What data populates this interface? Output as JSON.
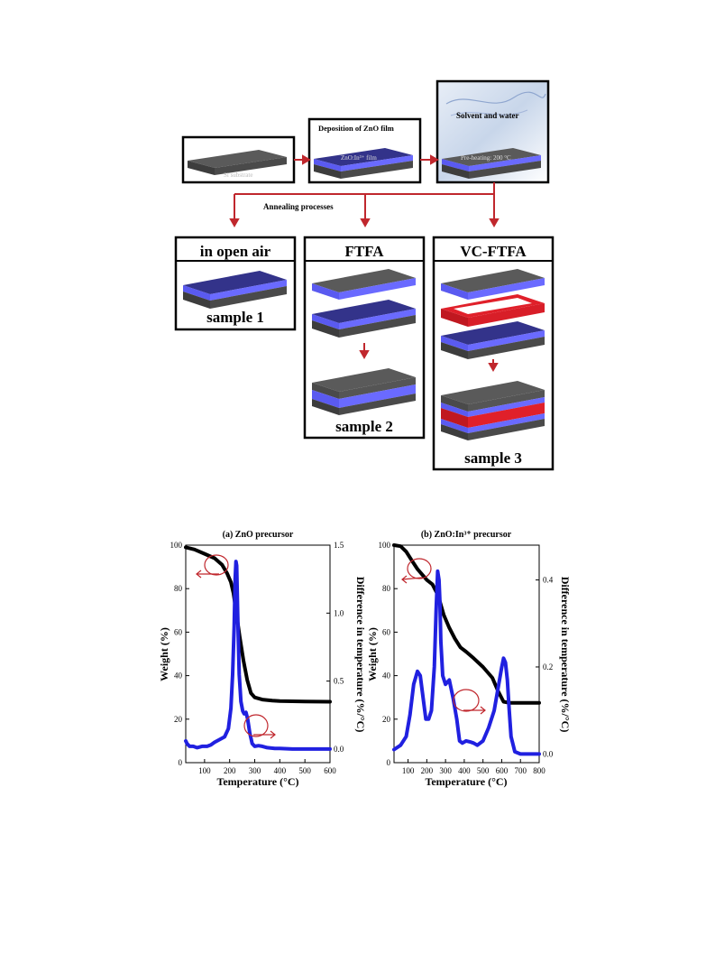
{
  "schematic": {
    "box1_label": "Si substrate",
    "box2_title": "Deposition of ZnO film",
    "box2_label": "ZnO:In³⁺ film",
    "box3_top": "Solvent and water",
    "box3_label": "Pre-heating: 200 °C",
    "branch_label": "Annealing processes",
    "col1_title": "in open air",
    "col1_sample": "sample 1",
    "col2_title": "FTFA",
    "col2_sample": "sample 2",
    "col3_title": "VC-FTFA",
    "col3_sample": "sample 3",
    "colors": {
      "arrow": "#c0272d",
      "film": "#7070ff",
      "substrate": "#555555",
      "spacer": "#e0202a"
    }
  },
  "chart_data": [
    {
      "type": "line",
      "title": "(a) ZnO precursor",
      "xlabel": "Temperature (°C)",
      "ylabel": "Weight (%)",
      "y2label": "Difference in temperature (%/°C)",
      "xlim": [
        25,
        600
      ],
      "ylim": [
        0,
        100
      ],
      "y2lim": [
        -0.1,
        1.5
      ],
      "xticks": [
        "100",
        "200",
        "300",
        "400",
        "500",
        "600"
      ],
      "yticks": [
        "0",
        "20",
        "40",
        "60",
        "80",
        "100"
      ],
      "y2ticks": [
        "0.0",
        "0.5",
        "1.0",
        "1.5"
      ],
      "series": [
        {
          "axis": "left",
          "color": "#000000",
          "x": [
            25,
            60,
            100,
            140,
            170,
            190,
            205,
            215,
            225,
            240,
            255,
            270,
            285,
            300,
            330,
            370,
            400,
            500,
            600
          ],
          "y": [
            99,
            98,
            96,
            94,
            91,
            87,
            83,
            78,
            70,
            58,
            47,
            38,
            32,
            30,
            29,
            28.5,
            28.3,
            28.1,
            28
          ]
        },
        {
          "axis": "right",
          "color": "#2020e0",
          "x": [
            25,
            30,
            40,
            55,
            70,
            90,
            110,
            125,
            140,
            160,
            180,
            195,
            205,
            212,
            218,
            222,
            225,
            228,
            232,
            238,
            245,
            252,
            258,
            265,
            272,
            280,
            290,
            300,
            315,
            330,
            350,
            380,
            400,
            450,
            500,
            550,
            600
          ],
          "y": [
            0.06,
            0.04,
            0.02,
            0.02,
            0.01,
            0.02,
            0.02,
            0.03,
            0.05,
            0.07,
            0.09,
            0.15,
            0.3,
            0.55,
            0.9,
            1.25,
            1.38,
            1.35,
            1.0,
            0.55,
            0.35,
            0.28,
            0.26,
            0.27,
            0.22,
            0.12,
            0.04,
            0.02,
            0.025,
            0.02,
            0.01,
            0.005,
            0.005,
            0,
            0,
            0,
            0
          ]
        }
      ]
    },
    {
      "type": "line",
      "title": "(b) ZnO:In³⁺ precursor",
      "xlabel": "Temperature (°C)",
      "ylabel": "Weight (%)",
      "y2label": "Difference in temperature (%/°C)",
      "xlim": [
        25,
        800
      ],
      "ylim": [
        0,
        100
      ],
      "y2lim": [
        -0.02,
        0.48
      ],
      "xticks": [
        "100",
        "200",
        "300",
        "400",
        "500",
        "600",
        "700",
        "800"
      ],
      "yticks": [
        "0",
        "20",
        "40",
        "60",
        "80",
        "100"
      ],
      "y2ticks": [
        "0.0",
        "0.2",
        "0.4"
      ],
      "series": [
        {
          "axis": "left",
          "color": "#000000",
          "x": [
            25,
            60,
            90,
            120,
            150,
            180,
            200,
            230,
            260,
            290,
            320,
            350,
            380,
            410,
            450,
            500,
            550,
            580,
            610,
            640,
            700,
            800
          ],
          "y": [
            100,
            99.5,
            97,
            93,
            89,
            86,
            84,
            82,
            77,
            68,
            62,
            57,
            53,
            51,
            48,
            44,
            39,
            33,
            28,
            27.5,
            27.5,
            27.5
          ]
        },
        {
          "axis": "right",
          "color": "#2020e0",
          "x": [
            25,
            60,
            90,
            110,
            130,
            150,
            165,
            180,
            195,
            210,
            225,
            240,
            250,
            258,
            265,
            270,
            275,
            285,
            300,
            320,
            340,
            360,
            375,
            390,
            410,
            430,
            450,
            470,
            500,
            530,
            560,
            580,
            600,
            610,
            620,
            630,
            640,
            650,
            670,
            700,
            800
          ],
          "y": [
            0.01,
            0.02,
            0.04,
            0.09,
            0.16,
            0.19,
            0.18,
            0.13,
            0.08,
            0.08,
            0.1,
            0.2,
            0.33,
            0.42,
            0.4,
            0.35,
            0.26,
            0.18,
            0.16,
            0.17,
            0.13,
            0.08,
            0.03,
            0.025,
            0.03,
            0.028,
            0.025,
            0.02,
            0.03,
            0.06,
            0.1,
            0.15,
            0.2,
            0.22,
            0.21,
            0.17,
            0.1,
            0.04,
            0.005,
            0,
            0
          ]
        }
      ]
    }
  ]
}
